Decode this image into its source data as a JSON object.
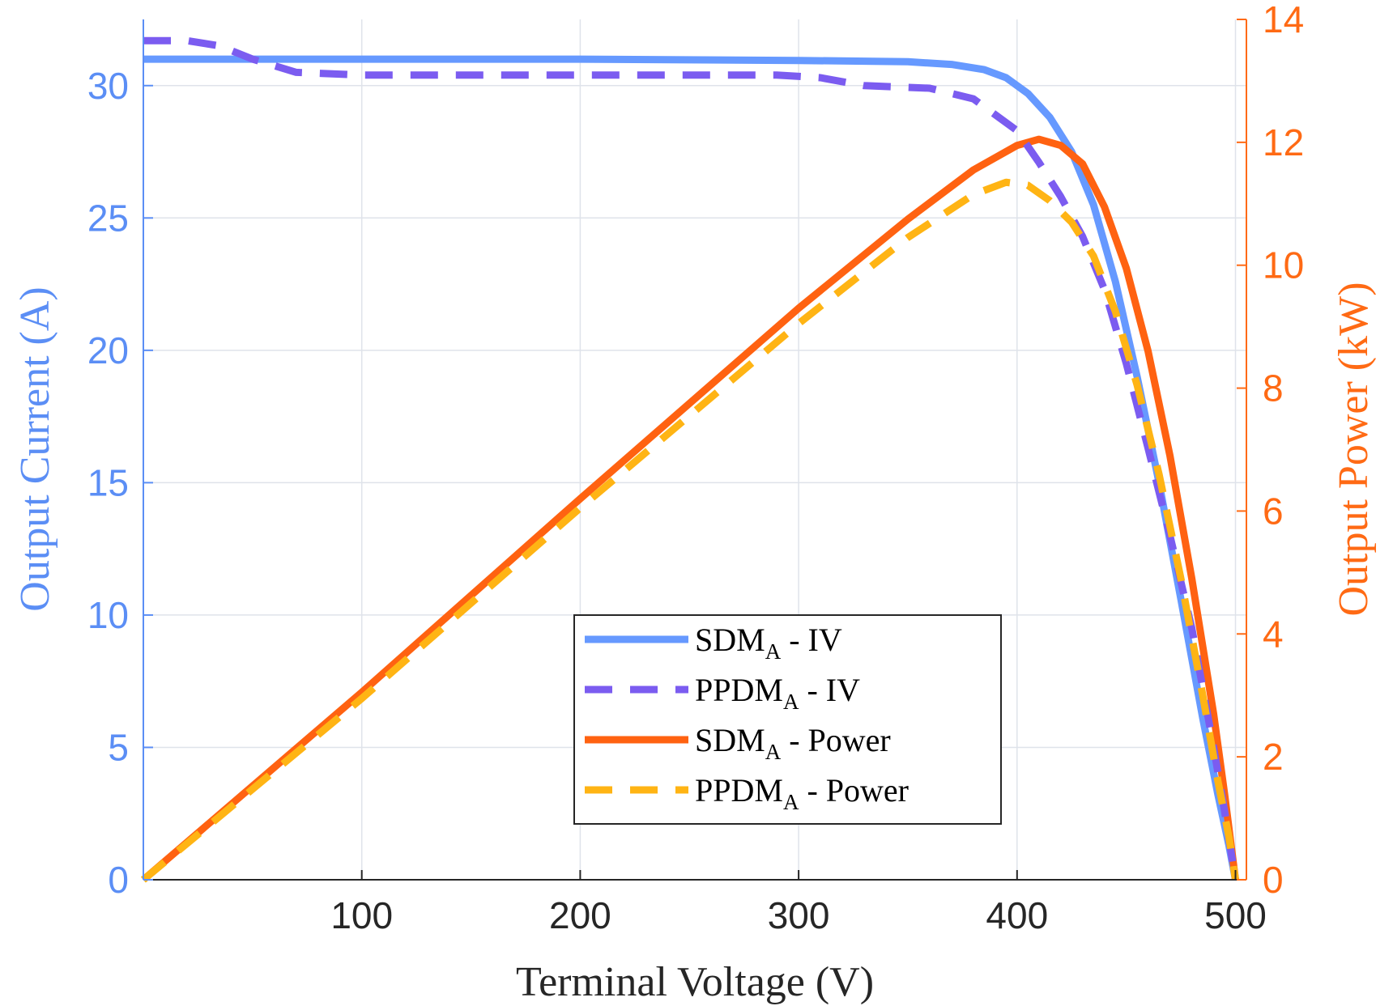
{
  "chart_data": {
    "type": "line",
    "xlabel": "Terminal Voltage (V)",
    "ylabel_left": "Output Current (A)",
    "ylabel_right": "Output Power (kW)",
    "xlim": [
      0,
      505
    ],
    "ylim_left": [
      0,
      32.5
    ],
    "ylim_right": [
      0,
      14
    ],
    "x_ticks": [
      "100",
      "200",
      "300",
      "400",
      "500"
    ],
    "x_tick_values": [
      100,
      200,
      300,
      400,
      500
    ],
    "y_left_ticks": [
      "0",
      "5",
      "10",
      "15",
      "20",
      "25",
      "30"
    ],
    "y_left_tick_values": [
      0,
      5,
      10,
      15,
      20,
      25,
      30
    ],
    "y_right_ticks": [
      "0",
      "2",
      "4",
      "6",
      "8",
      "10",
      "12",
      "14"
    ],
    "y_right_tick_values": [
      0,
      2,
      4,
      6,
      8,
      10,
      12,
      14
    ],
    "grid": true,
    "colors": {
      "left_axis": "#5B8EF5",
      "right_axis": "#FF6A14",
      "sdm_iv": "#6699FF",
      "ppdm_iv": "#7B5CF0",
      "sdm_power": "#FF6211",
      "ppdm_power": "#FFB414"
    },
    "series": [
      {
        "name": "SDM_A - IV",
        "axis": "left",
        "style": "solid",
        "color": "#6699FF",
        "x": [
          0,
          50,
          100,
          200,
          300,
          350,
          370,
          385,
          395,
          405,
          415,
          425,
          435,
          445,
          455,
          465,
          475,
          485,
          492,
          497,
          500
        ],
        "y": [
          31.0,
          31.0,
          31.0,
          31.0,
          30.95,
          30.9,
          30.8,
          30.6,
          30.3,
          29.7,
          28.8,
          27.5,
          25.5,
          22.6,
          19.0,
          15.0,
          10.6,
          6.1,
          3.2,
          1.3,
          0
        ]
      },
      {
        "name": "PPDM_A - IV",
        "axis": "left",
        "style": "dashed",
        "color": "#7B5CF0",
        "x": [
          0,
          20,
          35,
          50,
          70,
          100,
          200,
          290,
          310,
          330,
          360,
          380,
          400,
          410,
          420,
          430,
          440,
          450,
          460,
          470,
          480,
          490,
          495,
          500
        ],
        "y": [
          31.7,
          31.7,
          31.5,
          31.0,
          30.5,
          30.4,
          30.4,
          30.4,
          30.3,
          30.0,
          29.9,
          29.5,
          28.3,
          27.1,
          25.8,
          24.3,
          22.3,
          19.5,
          16.3,
          13.0,
          9.5,
          5.0,
          2.6,
          0
        ]
      },
      {
        "name": "SDM_A - Power",
        "axis": "right",
        "style": "solid",
        "color": "#FF6211",
        "x": [
          0,
          100,
          200,
          300,
          350,
          380,
          400,
          410,
          420,
          430,
          440,
          450,
          460,
          470,
          480,
          490,
          495,
          500
        ],
        "y": [
          0,
          3.05,
          6.2,
          9.3,
          10.75,
          11.55,
          11.95,
          12.05,
          11.95,
          11.65,
          10.95,
          9.95,
          8.6,
          6.9,
          4.9,
          2.7,
          1.4,
          0
        ]
      },
      {
        "name": "PPDM_A - Power",
        "axis": "right",
        "style": "dashed",
        "color": "#FFB414",
        "x": [
          0,
          100,
          200,
          300,
          350,
          380,
          395,
          405,
          415,
          425,
          435,
          445,
          455,
          465,
          475,
          485,
          492,
          497,
          500
        ],
        "y": [
          0,
          2.95,
          6.05,
          9.05,
          10.45,
          11.15,
          11.35,
          11.3,
          11.05,
          10.7,
          10.15,
          9.25,
          8.05,
          6.6,
          4.9,
          3.0,
          1.6,
          0.7,
          0
        ]
      }
    ],
    "legend": {
      "placement": "lower-center",
      "entries": [
        {
          "base": "SDM",
          "sub": "A",
          "suffix": " - IV"
        },
        {
          "base": "PPDM",
          "sub": "A",
          "suffix": " - IV"
        },
        {
          "base": "SDM",
          "sub": "A",
          "suffix": " - Power"
        },
        {
          "base": "PPDM",
          "sub": "A",
          "suffix": " - Power"
        }
      ]
    }
  }
}
